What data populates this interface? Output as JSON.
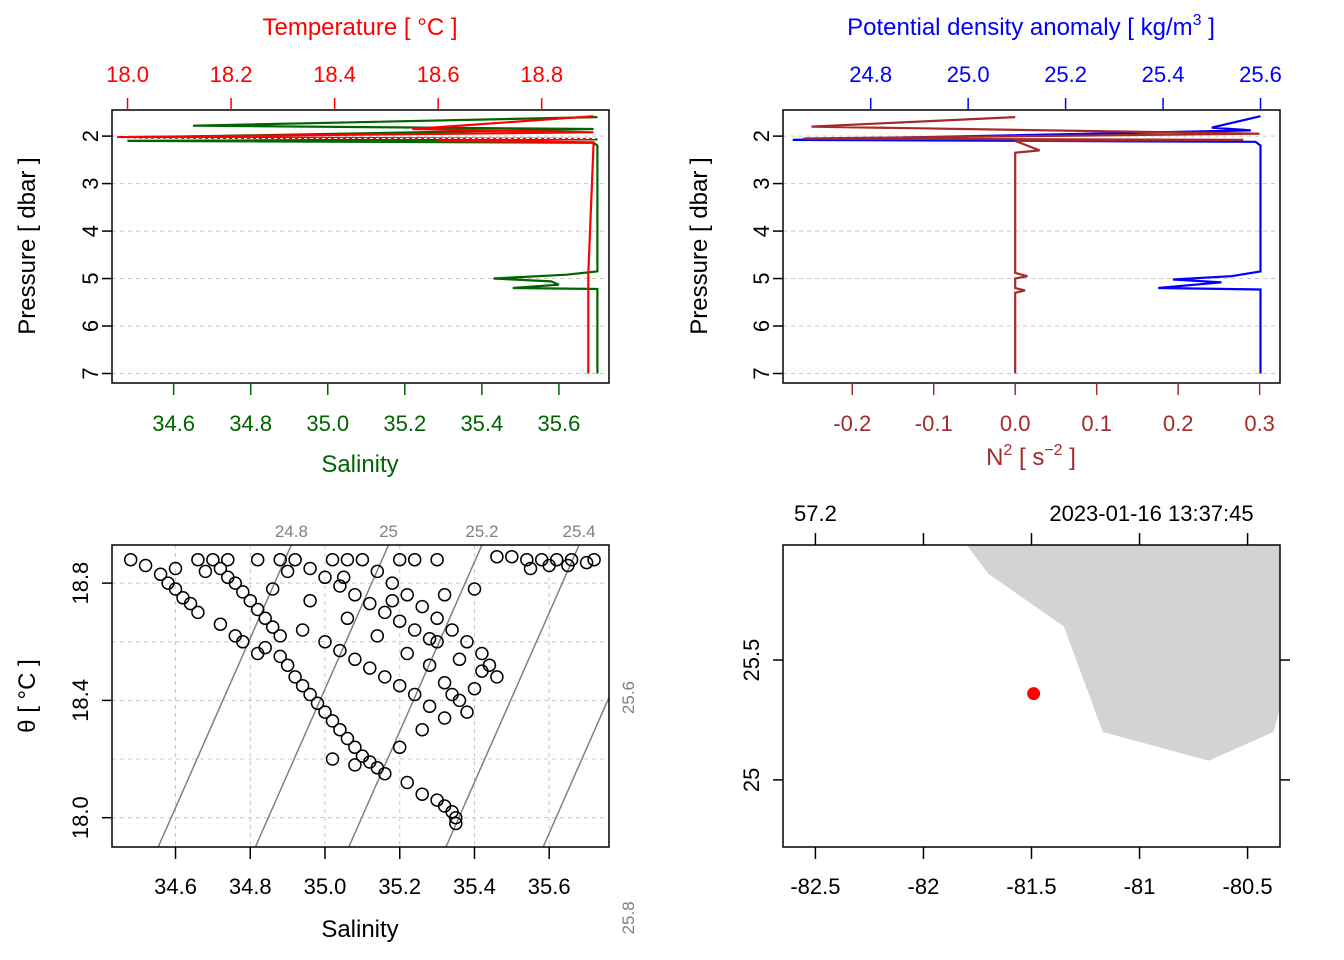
{
  "colors": {
    "temperature": "#ff0000",
    "salinity": "#006400",
    "density": "#0000ff",
    "n2": "#a52a2a",
    "isopycnal": "#808080",
    "land": "#d3d3d3",
    "station": "#ff0000",
    "grid": "#c8c8c8"
  },
  "chart_data": [
    {
      "type": "line",
      "panel": "profile-ts",
      "top_label": {
        "prefix": "Temperature [ ",
        "unit": "°C",
        "suffix": " ]"
      },
      "bottom_label": "Salinity",
      "left_label": "Pressure [ dbar ]",
      "top_ticks": [
        "18.0",
        "18.2",
        "18.4",
        "18.6",
        "18.8"
      ],
      "bottom_ticks": [
        "34.6",
        "34.8",
        "35.0",
        "35.2",
        "35.4",
        "35.6"
      ],
      "left_ticks": [
        "2",
        "3",
        "4",
        "5",
        "6",
        "7"
      ],
      "xlim_temperature": [
        17.97,
        18.93
      ],
      "xlim_salinity": [
        34.44,
        35.73
      ],
      "ylim_pressure": [
        7.2,
        1.45
      ],
      "grid": true,
      "series": [
        {
          "name": "Salinity",
          "color": "salinity",
          "points": [
            [
              35.7,
              1.6
            ],
            [
              34.65,
              1.78
            ],
            [
              35.69,
              1.85
            ],
            [
              34.5,
              2.03
            ],
            [
              35.7,
              2.07
            ],
            [
              34.48,
              2.1
            ],
            [
              35.69,
              2.14
            ],
            [
              35.7,
              2.2
            ],
            [
              35.7,
              4.85
            ],
            [
              35.62,
              4.92
            ],
            [
              35.43,
              5.0
            ],
            [
              35.58,
              5.06
            ],
            [
              35.6,
              5.13
            ],
            [
              35.48,
              5.2
            ],
            [
              35.7,
              5.22
            ],
            [
              35.7,
              5.3
            ],
            [
              35.7,
              7.0
            ]
          ]
        },
        {
          "name": "Temperature",
          "color": "temperature",
          "points": [
            [
              18.9,
              1.58
            ],
            [
              18.55,
              1.85
            ],
            [
              18.9,
              1.92
            ],
            [
              17.98,
              2.02
            ],
            [
              18.9,
              2.06
            ],
            [
              18.6,
              2.1
            ],
            [
              18.9,
              2.13
            ],
            [
              18.9,
              2.2
            ],
            [
              18.89,
              4.9
            ],
            [
              18.89,
              5.3
            ],
            [
              18.89,
              7.0
            ]
          ]
        }
      ]
    },
    {
      "type": "line",
      "panel": "profile-density-n2",
      "top_label": {
        "prefix": "Potential density anomaly [ ",
        "unit": "kg/m",
        "sup": "3",
        "suffix": " ]"
      },
      "bottom_label": {
        "prefix": "N",
        "sup": "2",
        "mid": " [ s",
        "sup2": "−2",
        "suffix": " ]"
      },
      "left_label": "Pressure [ dbar ]",
      "top_ticks": [
        "24.8",
        "25.0",
        "25.2",
        "25.4",
        "25.6"
      ],
      "bottom_ticks": [
        "-0.2",
        "-0.1",
        "0.0",
        "0.1",
        "0.2",
        "0.3"
      ],
      "left_ticks": [
        "2",
        "3",
        "4",
        "5",
        "6",
        "7"
      ],
      "xlim_density": [
        24.62,
        25.64
      ],
      "xlim_n2": [
        -0.285,
        0.325
      ],
      "ylim_pressure": [
        7.2,
        1.45
      ],
      "grid": true,
      "series": [
        {
          "name": "Potential density anomaly",
          "color": "density",
          "points": [
            [
              25.6,
              1.58
            ],
            [
              25.5,
              1.82
            ],
            [
              25.58,
              1.88
            ],
            [
              24.64,
              2.08
            ],
            [
              25.59,
              2.12
            ],
            [
              25.6,
              2.2
            ],
            [
              25.6,
              4.85
            ],
            [
              25.54,
              4.95
            ],
            [
              25.42,
              5.02
            ],
            [
              25.52,
              5.08
            ],
            [
              25.39,
              5.2
            ],
            [
              25.6,
              5.23
            ],
            [
              25.6,
              7.0
            ]
          ]
        },
        {
          "name": "N2",
          "color": "n2",
          "points": [
            [
              0.0,
              1.6
            ],
            [
              -0.25,
              1.8
            ],
            [
              0.3,
              1.95
            ],
            [
              -0.26,
              2.05
            ],
            [
              0.28,
              2.08
            ],
            [
              0.0,
              2.1
            ],
            [
              0.03,
              2.3
            ],
            [
              0.0,
              2.35
            ],
            [
              0.0,
              4.88
            ],
            [
              0.015,
              4.95
            ],
            [
              0.0,
              5.0
            ],
            [
              0.0,
              5.2
            ],
            [
              0.012,
              5.25
            ],
            [
              0.0,
              5.3
            ],
            [
              0.0,
              7.0
            ]
          ]
        }
      ]
    },
    {
      "type": "scatter",
      "panel": "ts-diagram",
      "xlabel": "Salinity",
      "ylabel": {
        "prefix": "θ [ ",
        "unit": "°C",
        "suffix": " ]"
      },
      "x_ticks": [
        "34.6",
        "34.8",
        "35.0",
        "35.2",
        "35.4",
        "35.6"
      ],
      "y_ticks": [
        "18.0",
        "18.4",
        "18.8"
      ],
      "xlim": [
        34.43,
        35.76
      ],
      "ylim": [
        17.9,
        18.93
      ],
      "grid": true,
      "isopycnal_labels": [
        "24.8",
        "25",
        "25.2",
        "25.4",
        "25.6",
        "25.8"
      ],
      "isopycnals_top_salinity": [
        34.91,
        35.17,
        35.42,
        35.68,
        35.94,
        36.2
      ],
      "isopycnal_slope_salinity_per_degC": 0.346,
      "points": [
        [
          34.48,
          18.88
        ],
        [
          34.52,
          18.86
        ],
        [
          34.56,
          18.83
        ],
        [
          34.58,
          18.8
        ],
        [
          34.6,
          18.78
        ],
        [
          34.62,
          18.75
        ],
        [
          34.64,
          18.73
        ],
        [
          34.66,
          18.7
        ],
        [
          34.7,
          18.88
        ],
        [
          34.72,
          18.85
        ],
        [
          34.74,
          18.82
        ],
        [
          34.76,
          18.8
        ],
        [
          34.78,
          18.77
        ],
        [
          34.8,
          18.74
        ],
        [
          34.82,
          18.71
        ],
        [
          34.84,
          18.68
        ],
        [
          34.86,
          18.65
        ],
        [
          34.88,
          18.62
        ],
        [
          34.78,
          18.6
        ],
        [
          34.82,
          18.56
        ],
        [
          34.88,
          18.55
        ],
        [
          34.9,
          18.52
        ],
        [
          34.92,
          18.48
        ],
        [
          34.94,
          18.45
        ],
        [
          34.96,
          18.42
        ],
        [
          34.98,
          18.39
        ],
        [
          35.0,
          18.36
        ],
        [
          35.02,
          18.33
        ],
        [
          35.04,
          18.3
        ],
        [
          35.06,
          18.27
        ],
        [
          35.08,
          18.24
        ],
        [
          35.1,
          18.21
        ],
        [
          35.12,
          18.19
        ],
        [
          35.14,
          18.17
        ],
        [
          35.16,
          18.15
        ],
        [
          34.92,
          18.88
        ],
        [
          34.96,
          18.85
        ],
        [
          35.0,
          18.82
        ],
        [
          35.04,
          18.79
        ],
        [
          35.08,
          18.76
        ],
        [
          35.12,
          18.73
        ],
        [
          35.16,
          18.7
        ],
        [
          35.2,
          18.67
        ],
        [
          35.24,
          18.64
        ],
        [
          35.28,
          18.61
        ],
        [
          35.0,
          18.6
        ],
        [
          35.04,
          18.57
        ],
        [
          35.08,
          18.54
        ],
        [
          35.12,
          18.51
        ],
        [
          35.16,
          18.48
        ],
        [
          35.2,
          18.45
        ],
        [
          35.24,
          18.42
        ],
        [
          35.28,
          18.38
        ],
        [
          35.32,
          18.34
        ],
        [
          35.26,
          18.3
        ],
        [
          35.2,
          18.24
        ],
        [
          35.1,
          18.88
        ],
        [
          35.14,
          18.84
        ],
        [
          35.18,
          18.8
        ],
        [
          35.22,
          18.76
        ],
        [
          35.26,
          18.72
        ],
        [
          35.3,
          18.68
        ],
        [
          35.34,
          18.64
        ],
        [
          35.38,
          18.6
        ],
        [
          35.42,
          18.56
        ],
        [
          35.44,
          18.52
        ],
        [
          35.46,
          18.48
        ],
        [
          35.4,
          18.44
        ],
        [
          35.36,
          18.4
        ],
        [
          35.22,
          18.12
        ],
        [
          35.26,
          18.08
        ],
        [
          35.3,
          18.06
        ],
        [
          35.32,
          18.04
        ],
        [
          35.34,
          18.02
        ],
        [
          35.35,
          18.0
        ],
        [
          35.35,
          17.98
        ],
        [
          35.3,
          18.6
        ],
        [
          35.36,
          18.54
        ],
        [
          35.42,
          18.5
        ],
        [
          35.4,
          18.78
        ],
        [
          35.46,
          18.89
        ],
        [
          35.5,
          18.89
        ],
        [
          35.54,
          18.88
        ],
        [
          35.58,
          18.88
        ],
        [
          35.62,
          18.88
        ],
        [
          35.66,
          18.88
        ],
        [
          35.7,
          18.87
        ],
        [
          35.72,
          18.88
        ],
        [
          35.55,
          18.85
        ],
        [
          35.6,
          18.86
        ],
        [
          35.65,
          18.86
        ],
        [
          34.66,
          18.88
        ],
        [
          34.74,
          18.88
        ],
        [
          34.82,
          18.88
        ],
        [
          34.88,
          18.88
        ],
        [
          35.02,
          18.88
        ],
        [
          35.06,
          18.88
        ],
        [
          35.2,
          18.88
        ],
        [
          35.24,
          18.88
        ],
        [
          35.3,
          18.88
        ],
        [
          34.6,
          18.85
        ],
        [
          34.68,
          18.84
        ],
        [
          34.9,
          18.84
        ],
        [
          35.05,
          18.82
        ],
        [
          34.72,
          18.66
        ],
        [
          34.76,
          18.62
        ],
        [
          34.84,
          18.58
        ],
        [
          34.94,
          18.64
        ],
        [
          35.06,
          18.68
        ],
        [
          35.14,
          18.62
        ],
        [
          35.22,
          18.56
        ],
        [
          35.28,
          18.52
        ],
        [
          35.32,
          18.46
        ],
        [
          35.34,
          18.42
        ],
        [
          35.38,
          18.36
        ],
        [
          34.86,
          18.78
        ],
        [
          34.96,
          18.74
        ],
        [
          35.18,
          18.74
        ],
        [
          35.32,
          18.76
        ],
        [
          35.02,
          18.2
        ],
        [
          35.08,
          18.18
        ]
      ]
    },
    {
      "type": "map",
      "panel": "station-map",
      "top_ticks": [
        "57.2",
        "",
        "2023-01-16 13:37:45",
        ""
      ],
      "x_ticks": [
        "-82.5",
        "-82",
        "-81.5",
        "-81",
        "-80.5"
      ],
      "y_ticks": [
        "25",
        "25.5"
      ],
      "xlim": [
        -82.65,
        -80.35
      ],
      "ylim": [
        24.72,
        25.98
      ],
      "station": {
        "lon": -81.49,
        "lat": 25.36
      },
      "land_polygon": [
        [
          -81.8,
          25.98
        ],
        [
          -81.7,
          25.86
        ],
        [
          -81.35,
          25.64
        ],
        [
          -81.17,
          25.2
        ],
        [
          -80.68,
          25.08
        ],
        [
          -80.38,
          25.2
        ],
        [
          -80.35,
          25.3
        ],
        [
          -80.35,
          25.98
        ]
      ]
    }
  ]
}
